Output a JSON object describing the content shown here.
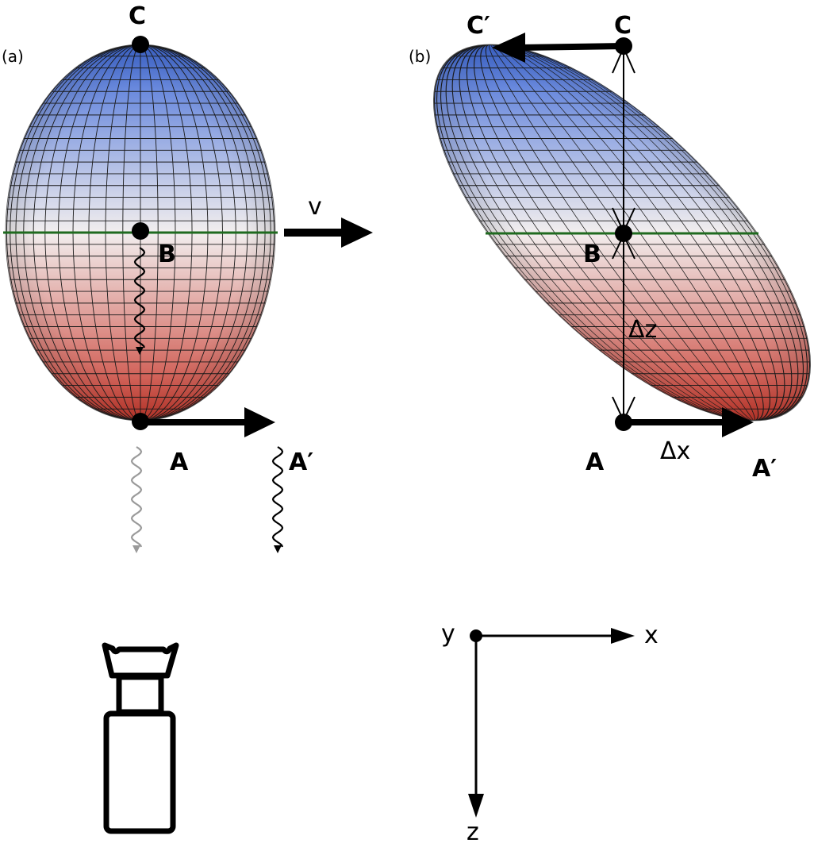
{
  "panels": {
    "a": "(a)",
    "b": "(b)"
  },
  "labels": {
    "c": "C",
    "b": "B",
    "a": "A",
    "a_prime": "A′",
    "c_prime": "C′",
    "velocity": "v",
    "delta_z": "Δz",
    "delta_x": "Δx"
  },
  "axes": {
    "x": "x",
    "y": "y",
    "z": "z"
  },
  "colors": {
    "top": "#3f6ad8",
    "middle": "#f2eeee",
    "bottom": "#c8382c",
    "equator": "#1f6a1f",
    "grid": "#1a1a1a",
    "gray_wave": "#9a9a9a"
  },
  "icons": [
    "camera-icon",
    "wavy-arrow-icon"
  ]
}
